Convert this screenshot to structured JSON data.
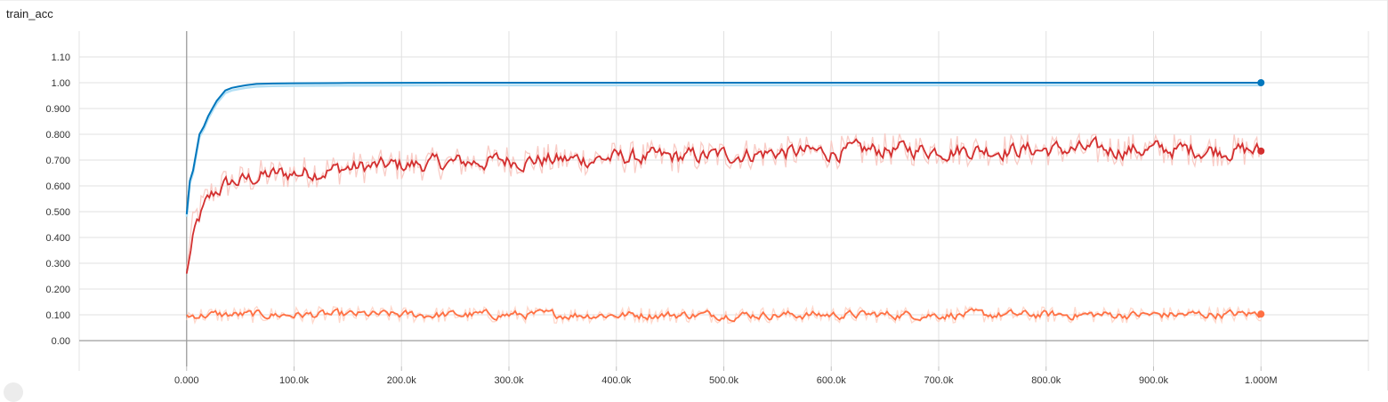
{
  "header": {
    "title": "train_acc"
  },
  "chart_data": {
    "type": "line",
    "title": "train_acc",
    "xlabel": "",
    "ylabel": "",
    "xlim": [
      -100000,
      1100000
    ],
    "ylim": [
      -0.1,
      1.2
    ],
    "x_ticks": [
      "0.000",
      "100.0k",
      "200.0k",
      "300.0k",
      "400.0k",
      "500.0k",
      "600.0k",
      "700.0k",
      "800.0k",
      "900.0k",
      "1.000M"
    ],
    "y_ticks": [
      "0.00",
      "0.100",
      "0.200",
      "0.300",
      "0.400",
      "0.500",
      "0.600",
      "0.700",
      "0.800",
      "0.900",
      "1.00",
      "1.10"
    ],
    "x_tick_values": [
      0,
      100000,
      200000,
      300000,
      400000,
      500000,
      600000,
      700000,
      800000,
      900000,
      1000000
    ],
    "y_tick_values": [
      0,
      0.1,
      0.2,
      0.3,
      0.4,
      0.5,
      0.6,
      0.7,
      0.8,
      0.9,
      1.0,
      1.1
    ],
    "grid": true,
    "series": [
      {
        "color": "#0277bd",
        "raw_color": "#b3e0f5",
        "points": [
          [
            0,
            0.49
          ],
          [
            3000,
            0.62
          ],
          [
            6000,
            0.66
          ],
          [
            9000,
            0.73
          ],
          [
            12000,
            0.8
          ],
          [
            16000,
            0.83
          ],
          [
            20000,
            0.87
          ],
          [
            24000,
            0.9
          ],
          [
            28000,
            0.93
          ],
          [
            32000,
            0.95
          ],
          [
            36000,
            0.97
          ],
          [
            42000,
            0.98
          ],
          [
            48000,
            0.985
          ],
          [
            55000,
            0.99
          ],
          [
            65000,
            0.995
          ],
          [
            80000,
            0.997
          ],
          [
            100000,
            0.998
          ],
          [
            150000,
            0.999
          ],
          [
            250000,
            1.0
          ],
          [
            1000000,
            1.0
          ]
        ],
        "final_value": 1.0
      },
      {
        "color": "#d32f2f",
        "raw_color": "#f8c6c0",
        "points": [
          [
            0,
            0.26
          ],
          [
            2000,
            0.37
          ],
          [
            5000,
            0.42
          ],
          [
            8000,
            0.48
          ],
          [
            12000,
            0.5
          ],
          [
            18000,
            0.55
          ],
          [
            25000,
            0.58
          ],
          [
            35000,
            0.61
          ],
          [
            50000,
            0.62
          ],
          [
            70000,
            0.64
          ],
          [
            100000,
            0.65
          ],
          [
            150000,
            0.67
          ],
          [
            200000,
            0.68
          ],
          [
            250000,
            0.69
          ],
          [
            300000,
            0.7
          ],
          [
            350000,
            0.7
          ],
          [
            400000,
            0.71
          ],
          [
            450000,
            0.71
          ],
          [
            500000,
            0.72
          ],
          [
            550000,
            0.73
          ],
          [
            600000,
            0.73
          ],
          [
            650000,
            0.74
          ],
          [
            700000,
            0.74
          ],
          [
            750000,
            0.74
          ],
          [
            800000,
            0.74
          ],
          [
            850000,
            0.74
          ],
          [
            900000,
            0.74
          ],
          [
            950000,
            0.74
          ],
          [
            1000000,
            0.735
          ]
        ],
        "noise": 0.04,
        "final_value": 0.735
      },
      {
        "color": "#ff7043",
        "raw_color": "#ffd3c4",
        "points": [
          [
            0,
            0.1
          ],
          [
            100000,
            0.1
          ],
          [
            200000,
            0.1
          ],
          [
            300000,
            0.1
          ],
          [
            400000,
            0.1
          ],
          [
            500000,
            0.1
          ],
          [
            600000,
            0.1
          ],
          [
            700000,
            0.1
          ],
          [
            800000,
            0.1
          ],
          [
            900000,
            0.1
          ],
          [
            1000000,
            0.103
          ]
        ],
        "noise": 0.02,
        "final_value": 0.103
      }
    ]
  }
}
